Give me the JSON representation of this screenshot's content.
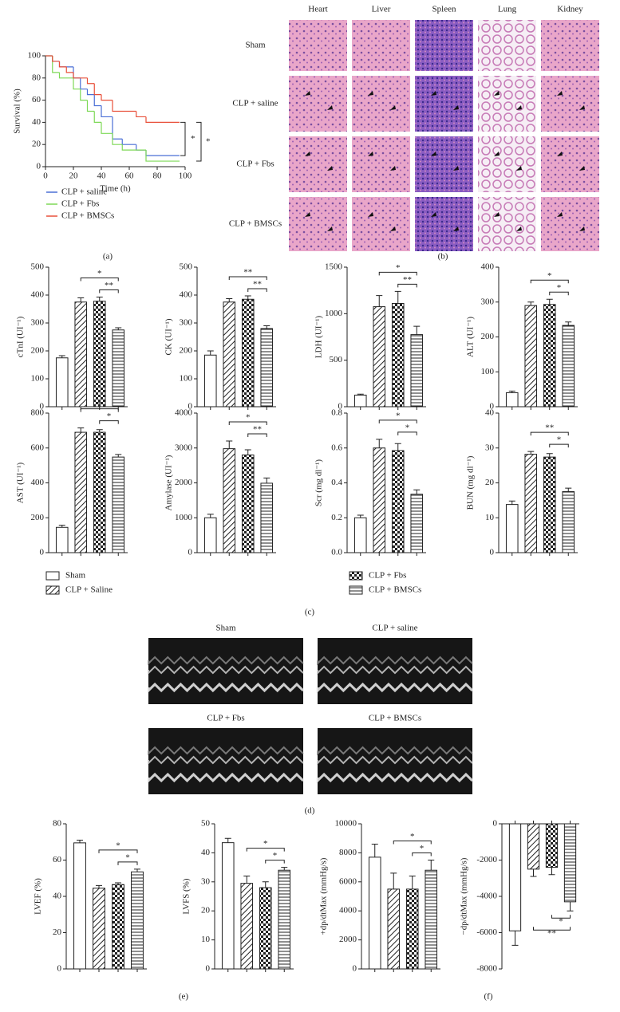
{
  "chart_data": [
    {
      "type": "line",
      "ylabel": "Survival (%)",
      "xlabel": "Time (h)",
      "xlim": [
        0,
        100
      ],
      "xticks": [
        0,
        20,
        40,
        60,
        80,
        100
      ],
      "ylim": [
        0,
        100
      ],
      "yticks": [
        0,
        20,
        40,
        60,
        80,
        100
      ],
      "series": [
        {
          "name": "CLP + saline",
          "color": "#4a6fd6",
          "x": [
            0,
            5,
            10,
            20,
            25,
            30,
            35,
            40,
            48,
            55,
            65,
            72,
            96
          ],
          "values": [
            100,
            95,
            90,
            80,
            70,
            65,
            55,
            45,
            25,
            20,
            15,
            10,
            10
          ]
        },
        {
          "name": "CLP + Fbs",
          "color": "#7ed957",
          "x": [
            0,
            5,
            10,
            20,
            25,
            30,
            35,
            40,
            48,
            55,
            72,
            96
          ],
          "values": [
            100,
            85,
            80,
            70,
            60,
            50,
            40,
            30,
            20,
            15,
            5,
            5
          ]
        },
        {
          "name": "CLP + BMSCs",
          "color": "#e8503a",
          "x": [
            0,
            5,
            10,
            15,
            20,
            30,
            35,
            40,
            48,
            65,
            72,
            96
          ],
          "values": [
            100,
            95,
            90,
            85,
            80,
            75,
            65,
            60,
            50,
            45,
            40,
            40
          ]
        }
      ],
      "annotations": [
        "*",
        "*"
      ]
    },
    {
      "type": "bar",
      "ylabel": "cTnI (UI⁻¹)",
      "categories": [
        null,
        null,
        null,
        null
      ],
      "values": [
        175,
        375,
        378,
        275
      ],
      "errors": [
        8,
        15,
        15,
        8
      ],
      "ylim": [
        0,
        500
      ],
      "yticks": [
        0,
        100,
        200,
        300,
        400,
        500
      ],
      "annotations": [
        "*",
        "**"
      ]
    },
    {
      "type": "bar",
      "ylabel": "CK (UI⁻¹)",
      "categories": [
        null,
        null,
        null,
        null
      ],
      "values": [
        185,
        375,
        385,
        280
      ],
      "errors": [
        15,
        12,
        12,
        10
      ],
      "ylim": [
        0,
        500
      ],
      "yticks": [
        0,
        100,
        200,
        300,
        400,
        500
      ],
      "annotations": [
        "**",
        "**"
      ]
    },
    {
      "type": "bar",
      "ylabel": "LDH (UI⁻¹)",
      "categories": [
        null,
        null,
        null,
        null
      ],
      "values": [
        125,
        1075,
        1110,
        775
      ],
      "errors": [
        10,
        120,
        130,
        90
      ],
      "ylim": [
        0,
        1500
      ],
      "yticks": [
        0,
        500,
        1000,
        1500
      ],
      "annotations": [
        "*",
        "**"
      ]
    },
    {
      "type": "bar",
      "ylabel": "ALT (UI⁻¹)",
      "categories": [
        null,
        null,
        null,
        null
      ],
      "values": [
        40,
        290,
        293,
        233
      ],
      "errors": [
        5,
        10,
        15,
        10
      ],
      "ylim": [
        0,
        400
      ],
      "yticks": [
        0,
        100,
        200,
        300,
        400
      ],
      "annotations": [
        "*",
        "*"
      ]
    },
    {
      "type": "bar",
      "ylabel": "AST (UI⁻¹)",
      "categories": [
        null,
        null,
        null,
        null
      ],
      "values": [
        145,
        690,
        690,
        548
      ],
      "errors": [
        12,
        25,
        15,
        15
      ],
      "ylim": [
        0,
        800
      ],
      "yticks": [
        0,
        200,
        400,
        600,
        800
      ],
      "annotations": [
        "*",
        "*"
      ]
    },
    {
      "type": "bar",
      "ylabel": "Amylase (UI⁻¹)",
      "categories": [
        null,
        null,
        null,
        null
      ],
      "values": [
        1000,
        2980,
        2800,
        1990
      ],
      "errors": [
        100,
        220,
        150,
        150
      ],
      "ylim": [
        0,
        4000
      ],
      "yticks": [
        0,
        1000,
        2000,
        3000,
        4000
      ],
      "annotations": [
        "*",
        "**"
      ]
    },
    {
      "type": "bar",
      "ylabel": "Scr (mg dl⁻¹)",
      "categories": [
        null,
        null,
        null,
        null
      ],
      "values": [
        0.2,
        0.6,
        0.585,
        0.335
      ],
      "errors": [
        0.015,
        0.05,
        0.04,
        0.025
      ],
      "ylim": [
        0,
        0.8
      ],
      "yticks": [
        {
          "value": 0,
          "label": "0.0"
        },
        0.2,
        0.4,
        0.6,
        0.8
      ],
      "annotations": [
        "*",
        "*"
      ]
    },
    {
      "type": "bar",
      "ylabel": "BUN (mg dl⁻¹)",
      "categories": [
        null,
        null,
        null,
        null
      ],
      "values": [
        13.8,
        28.2,
        27.4,
        17.5
      ],
      "errors": [
        1,
        0.8,
        1,
        1
      ],
      "ylim": [
        0,
        40
      ],
      "yticks": [
        0,
        10,
        20,
        30,
        40
      ],
      "annotations": [
        "**",
        "*"
      ]
    },
    {
      "type": "bar",
      "ylabel": "LVEF (%)",
      "categories": [
        null,
        null,
        null,
        null
      ],
      "values": [
        69.5,
        44.5,
        46.5,
        53.5
      ],
      "errors": [
        1.5,
        1.5,
        1,
        1.5
      ],
      "ylim": [
        0,
        80
      ],
      "yticks": [
        0,
        20,
        40,
        60,
        80
      ],
      "annotations": [
        "*",
        "*"
      ]
    },
    {
      "type": "bar",
      "ylabel": "LVFS (%)",
      "categories": [
        null,
        null,
        null,
        null
      ],
      "values": [
        43.5,
        29.5,
        28,
        34
      ],
      "errors": [
        1.5,
        2.5,
        2,
        1
      ],
      "ylim": [
        0,
        50
      ],
      "yticks": [
        0,
        10,
        20,
        30,
        40,
        50
      ],
      "annotations": [
        "*",
        "*"
      ]
    },
    {
      "type": "bar",
      "ylabel": "+dp/dtMax (mmHg/s)",
      "categories": [
        null,
        null,
        null,
        null
      ],
      "values": [
        7700,
        5500,
        5500,
        6800
      ],
      "errors": [
        900,
        1100,
        900,
        700
      ],
      "ylim": [
        0,
        10000
      ],
      "yticks": [
        0,
        2000,
        4000,
        6000,
        8000,
        10000
      ],
      "annotations": [
        "*",
        "*"
      ]
    },
    {
      "type": "bar",
      "ylabel": "−dp/dtMax (mmHg/s)",
      "categories": [
        null,
        null,
        null,
        null
      ],
      "values": [
        -5900,
        -2500,
        -2400,
        -4300
      ],
      "errors": [
        800,
        400,
        400,
        500
      ],
      "ylim": [
        -8000,
        0
      ],
      "yticks": [
        0,
        -2000,
        -4000,
        -6000,
        -8000
      ],
      "annotations": [
        "**",
        "*"
      ]
    }
  ],
  "group_legend": [
    "Sham",
    "CLP + Saline",
    "CLP + Fbs",
    "CLP + BMSCs"
  ],
  "histology": {
    "columns": [
      "Heart",
      "Liver",
      "Spleen",
      "Lung",
      "Kidney"
    ],
    "rows": [
      "Sham",
      "CLP + saline",
      "CLP + Fbs",
      "CLP + BMSCs"
    ]
  },
  "echo": {
    "panels": [
      "Sham",
      "CLP + saline",
      "CLP + Fbs",
      "CLP + BMSCs"
    ]
  },
  "figure_labels": {
    "a": "(a)",
    "b": "(b)",
    "c": "(c)",
    "d": "(d)",
    "e": "(e)",
    "f": "(f)"
  }
}
